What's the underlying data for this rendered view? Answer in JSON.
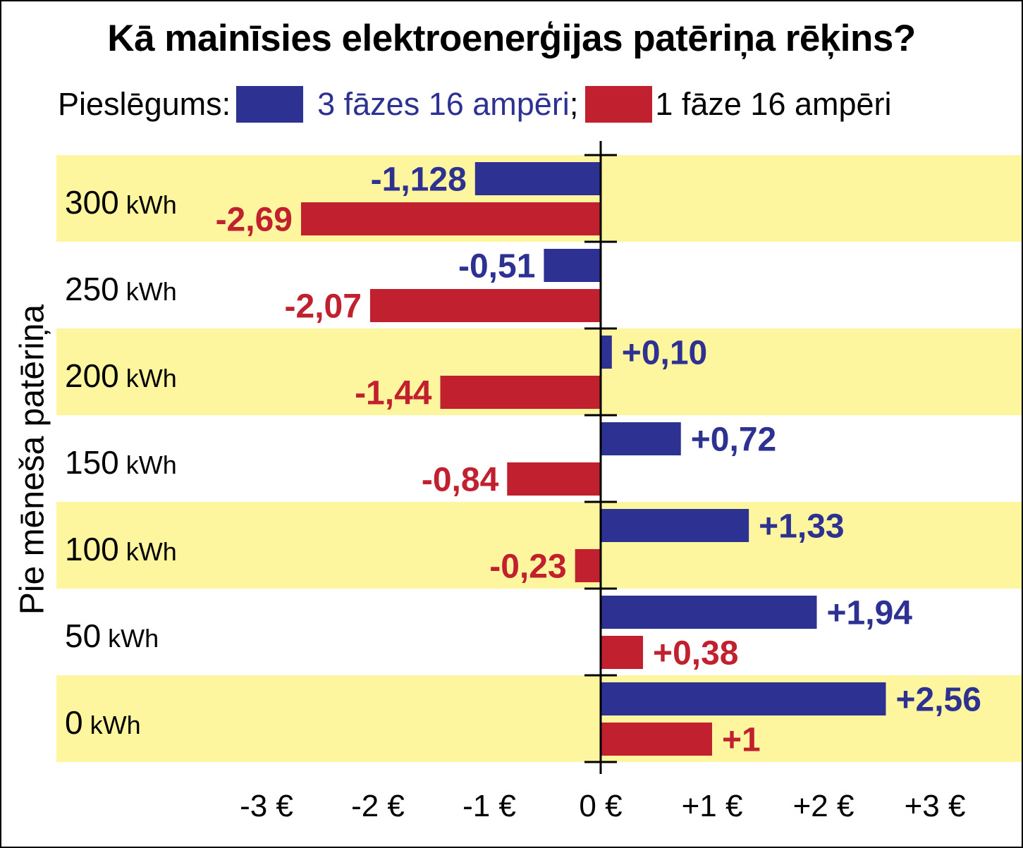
{
  "chart_data": {
    "type": "bar",
    "orientation": "horizontal",
    "title": "Kā mainīsies elektroenerģijas patēriņa rēķins?",
    "legend_label": "Pieslēgums:",
    "legend_separator": ";",
    "ylabel": "Pie mēneša patēriņa",
    "categories": [
      {
        "value": "300",
        "unit": "kWh"
      },
      {
        "value": "250",
        "unit": "kWh"
      },
      {
        "value": "200",
        "unit": "kWh"
      },
      {
        "value": "150",
        "unit": "kWh"
      },
      {
        "value": "100",
        "unit": "kWh"
      },
      {
        "value": "50",
        "unit": "kWh"
      },
      {
        "value": "0",
        "unit": "kWh"
      }
    ],
    "series": [
      {
        "name": "3 fāzes 16 ampēri",
        "color": "#2d3192",
        "values": [
          -1.128,
          -0.51,
          0.1,
          0.72,
          1.33,
          1.94,
          2.56
        ],
        "labels": [
          "-1,128",
          "-0,51",
          "+0,10",
          "+0,72",
          "+1,33",
          "+1,94",
          "+2,56"
        ]
      },
      {
        "name": "1 fāze 16 ampēri",
        "color": "#c1202f",
        "values": [
          -2.69,
          -2.07,
          -1.44,
          -0.84,
          -0.23,
          0.38,
          1
        ],
        "labels": [
          "-2,69",
          "-2,07",
          "-1,44",
          "-0,84",
          "-0,23",
          "+0,38",
          "+1"
        ]
      }
    ],
    "xlim": [
      -3,
      3
    ],
    "xticks": [
      -3,
      -2,
      -1,
      0,
      1,
      2,
      3
    ],
    "xtick_labels": [
      "-3 €",
      "-2 €",
      "-1 €",
      "0 €",
      "+1 €",
      "+2 €",
      "+3 €"
    ],
    "band_color": "#fef59f",
    "banded_rows": [
      0,
      2,
      4,
      6
    ],
    "grid": false,
    "legend_position": "top"
  }
}
